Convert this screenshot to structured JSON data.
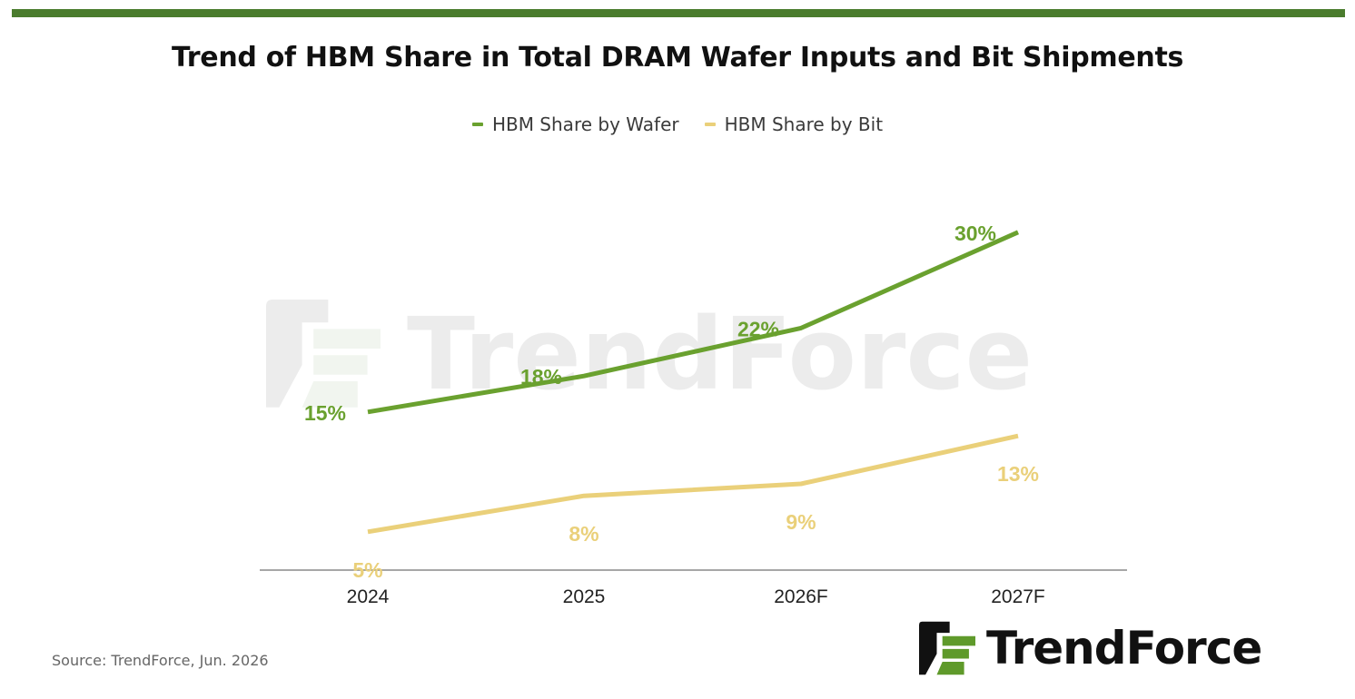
{
  "header": {
    "accent_color": "#4a7c2d"
  },
  "chart_data": {
    "type": "line",
    "title": "Trend of HBM Share in Total DRAM Wafer Inputs and Bit Shipments",
    "categories": [
      "2024",
      "2025",
      "2026F",
      "2027F"
    ],
    "series": [
      {
        "name": "HBM Share by Wafer",
        "values": [
          15,
          18,
          22,
          30
        ],
        "labels": [
          "15%",
          "18%",
          "22%",
          "30%"
        ],
        "color": "#6aa12f",
        "label_position": "left"
      },
      {
        "name": "HBM Share by Bit",
        "values": [
          5,
          8,
          9,
          13
        ],
        "labels": [
          "5%",
          "8%",
          "9%",
          "13%"
        ],
        "color": "#ead07a",
        "label_position": "below"
      }
    ],
    "xlabel": "",
    "ylabel": "",
    "grid": false,
    "legend_position": "top-center",
    "watermark": "TrendForce"
  },
  "footer": {
    "source": "Source: TrendForce, Jun. 2026",
    "logo_text": "TrendForce"
  }
}
